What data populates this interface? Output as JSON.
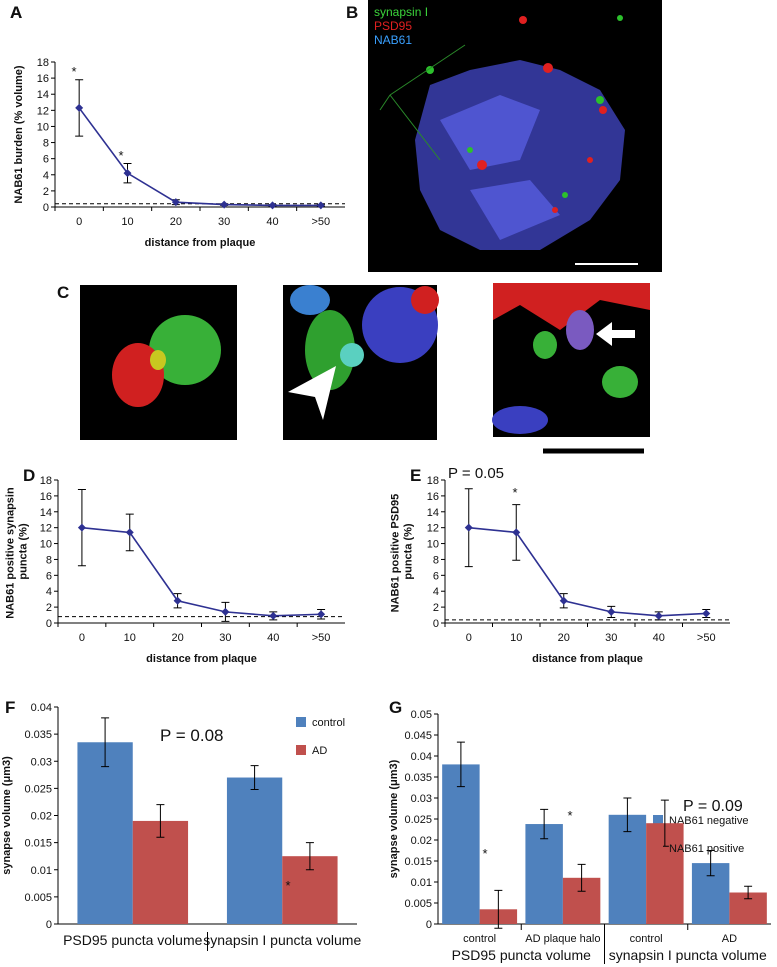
{
  "images": [
    {
      "panel": "B",
      "legend": [
        "synapsin I",
        "PSD95",
        "NAB61"
      ]
    },
    {
      "panel": "C"
    }
  ],
  "chart_data": [
    {
      "type": "line",
      "panel": "A",
      "y_label": "NAB61 burden (% volume)",
      "x_label": "distance from plaque",
      "categories": [
        "0",
        "10",
        "20",
        "30",
        "40",
        ">50"
      ],
      "series": [
        {
          "color": "#2e3192",
          "values": [
            12.3,
            4.2,
            0.6,
            0.3,
            0.2,
            0.2
          ],
          "errors": [
            3.5,
            1.2,
            0.3,
            0.1,
            0.1,
            0.1
          ]
        }
      ],
      "reference_line": 0.4,
      "annotations": [
        "*",
        "*"
      ],
      "ylim": [
        0,
        18
      ],
      "yticks": [
        0,
        2,
        4,
        6,
        8,
        10,
        12,
        14,
        16,
        18
      ]
    },
    {
      "type": "line",
      "panel": "D",
      "y_label": "NAB61 positive synapsin puncta (%)",
      "x_label": "distance from plaque",
      "categories": [
        "0",
        "10",
        "20",
        "30",
        "40",
        ">50"
      ],
      "series": [
        {
          "color": "#2e3192",
          "values": [
            12,
            11.4,
            2.8,
            1.4,
            0.9,
            1.1
          ],
          "errors": [
            4.8,
            2.3,
            0.9,
            1.2,
            0.5,
            0.6
          ]
        }
      ],
      "reference_line": 0.8,
      "annotations": [],
      "ylim": [
        0,
        18
      ],
      "yticks": [
        0,
        2,
        4,
        6,
        8,
        10,
        12,
        14,
        16,
        18
      ]
    },
    {
      "type": "line",
      "panel": "E",
      "y_label": "NAB61 positive PSD95 puncta (%)",
      "x_label": "distance from plaque",
      "categories": [
        "0",
        "10",
        "20",
        "30",
        "40",
        ">50"
      ],
      "series": [
        {
          "color": "#2e3192",
          "values": [
            12,
            11.4,
            2.8,
            1.4,
            0.9,
            1.2
          ],
          "errors": [
            4.9,
            3.5,
            0.9,
            0.7,
            0.5,
            0.5
          ]
        }
      ],
      "reference_line": 0.4,
      "annotations": [
        "P = 0.05",
        "*"
      ],
      "ylim": [
        0,
        18
      ],
      "yticks": [
        0,
        2,
        4,
        6,
        8,
        10,
        12,
        14,
        16,
        18
      ]
    },
    {
      "type": "bar",
      "panel": "F",
      "y_label": "synapse volume (μm3)",
      "categories": [
        "PSD95 puncta volume",
        "synapsin I puncta volume"
      ],
      "series": [
        {
          "name": "control",
          "color": "#4f81bd",
          "values": [
            0.0335,
            0.027
          ],
          "errors": [
            0.0045,
            0.0022
          ]
        },
        {
          "name": "AD",
          "color": "#c0504d",
          "values": [
            0.019,
            0.0125
          ],
          "errors": [
            0.003,
            0.0025
          ]
        }
      ],
      "legend": "upper right",
      "annotations": [
        "P = 0.08",
        "*"
      ],
      "ylim": [
        0,
        0.04
      ],
      "yticks": [
        0,
        0.005,
        0.01,
        0.015,
        0.02,
        0.025,
        0.03,
        0.035,
        0.04
      ]
    },
    {
      "type": "bar",
      "panel": "G",
      "y_label": "synapse volume (μm3)",
      "categories": [
        "control",
        "AD plaque halo",
        "control",
        "AD"
      ],
      "groups": [
        "PSD95 puncta volume",
        "synapsin I puncta volume"
      ],
      "series": [
        {
          "name": "NAB61 negative",
          "color": "#4f81bd",
          "values": [
            0.038,
            0.0238,
            0.026,
            0.0145
          ],
          "errors": [
            0.0053,
            0.0035,
            0.004,
            0.003
          ]
        },
        {
          "name": "NAB61 positive",
          "color": "#c0504d",
          "values": [
            0.0035,
            0.011,
            0.024,
            0.0075
          ],
          "errors": [
            0.0045,
            0.0032,
            0.0055,
            0.0015
          ]
        }
      ],
      "legend": "right",
      "annotations": [
        "*",
        "*",
        "P = 0.09"
      ],
      "ylim": [
        0,
        0.05
      ],
      "yticks": [
        0,
        0.005,
        0.01,
        0.015,
        0.02,
        0.025,
        0.03,
        0.035,
        0.04,
        0.045,
        0.05
      ]
    }
  ]
}
